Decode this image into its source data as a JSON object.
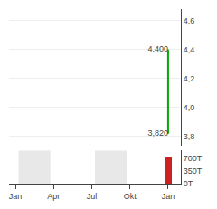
{
  "chart_data": [
    {
      "type": "line",
      "x": [
        12.0,
        12.0
      ],
      "values": [
        4.4,
        3.82
      ],
      "value_labels": [
        "4,400",
        "3,820"
      ],
      "data_labels": true,
      "color": "#00aa00",
      "xlim": [
        -0.5,
        13.0
      ],
      "ylim": [
        3.74,
        4.68
      ],
      "yticks": [
        {
          "value": 3.8,
          "label": "3,8"
        },
        {
          "value": 4.0,
          "label": "4,0"
        },
        {
          "value": 4.2,
          "label": "4,2"
        },
        {
          "value": 4.4,
          "label": "4,4"
        },
        {
          "value": 4.6,
          "label": "4,6"
        }
      ],
      "grid": true,
      "tick_labels": "y"
    },
    {
      "type": "bar",
      "x": [
        12.0
      ],
      "values": [
        700
      ],
      "color": "#cc2222",
      "bands": {
        "x": [
          [
            0.25,
            2.75
          ],
          [
            6.25,
            8.75
          ]
        ],
        "color": "#e8e8e8"
      },
      "xlim": [
        -0.5,
        13.0
      ],
      "xticks": [
        {
          "value": 0,
          "label": "Jan"
        },
        {
          "value": 3,
          "label": "Apr"
        },
        {
          "value": 6,
          "label": "Jul"
        },
        {
          "value": 9,
          "label": "Okt"
        },
        {
          "value": 12,
          "label": "Jan"
        }
      ],
      "ylim": [
        0,
        900
      ],
      "yticks": [
        {
          "value": 0,
          "label": "0T"
        },
        {
          "value": 350,
          "label": "350T"
        },
        {
          "value": 700,
          "label": "700T"
        }
      ],
      "grid": false
    }
  ]
}
